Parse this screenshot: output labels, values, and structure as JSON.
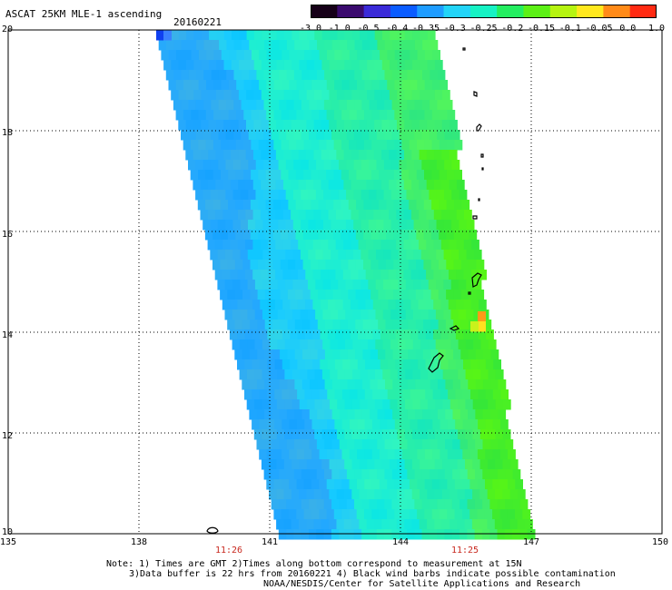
{
  "header": {
    "title": "ASCAT 25KM MLE-1 ascending",
    "date": "20160221"
  },
  "colorbar": {
    "labels": [
      "-3.0",
      "-1.0",
      "-0.5",
      "-0.4",
      "-0.35",
      "-0.3",
      "-0.25",
      "-0.2",
      "-0.15",
      "-0.1",
      "-0.05",
      "0.0",
      "1.0"
    ],
    "colors": [
      "#160018",
      "#3a0a6e",
      "#3a2ad8",
      "#0a5cff",
      "#1e9cff",
      "#22d4f8",
      "#16f2c4",
      "#24ee60",
      "#5cf016",
      "#b6f410",
      "#ffe81e",
      "#ff8a18",
      "#ff2a12"
    ]
  },
  "axes": {
    "lat_ticks": [
      "20",
      "18",
      "16",
      "14",
      "12",
      "10"
    ],
    "lon_ticks": [
      "135",
      "138",
      "141",
      "144",
      "147",
      "150"
    ]
  },
  "times": [
    {
      "label": "11:26",
      "lon": 140.0
    },
    {
      "label": "11:25",
      "lon": 145.5
    }
  ],
  "notes": {
    "line1": "Note: 1) Times are GMT 2)Times along bottom correspond to measurement at 15N",
    "line2": "3)Data buffer is 22 hrs from 20160221 4) Black wind barbs indicate possible contamination",
    "line3": "NOAA/NESDIS/Center for Satellite Applications and Research"
  }
}
